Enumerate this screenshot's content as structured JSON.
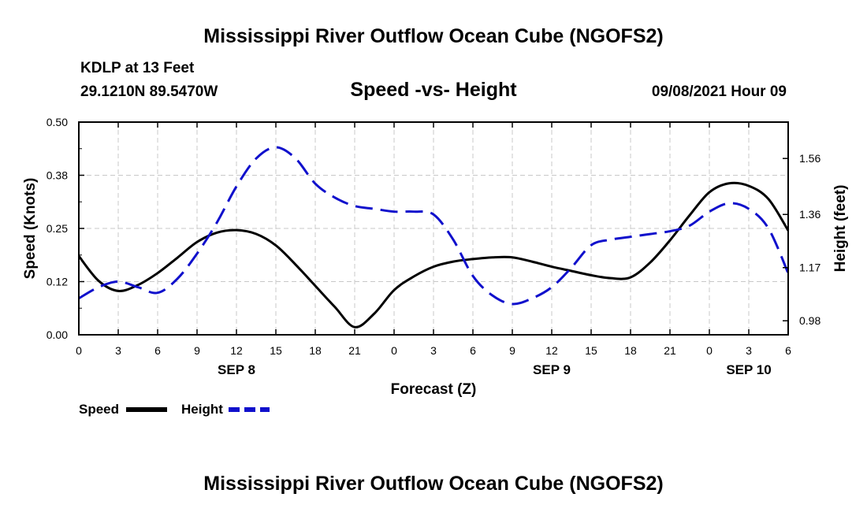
{
  "header": {
    "title": "Mississippi River Outflow Ocean Cube (NGOFS2)",
    "station": "KDLP at 13 Feet",
    "coords": "29.1210N  89.5470W",
    "subtitle": "Speed -vs- Height",
    "datetime": "09/08/2021 Hour 09"
  },
  "footer": {
    "title": "Mississippi River Outflow Ocean Cube (NGOFS2)"
  },
  "chart_data": {
    "type": "line",
    "xlabel": "Forecast (Z)",
    "ylabel_left": "Speed (Knots)",
    "ylabel_right": "Height (feet)",
    "xlim": [
      0,
      54
    ],
    "ylim_left": [
      0,
      0.5
    ],
    "ylim_right": [
      0.93,
      1.69
    ],
    "yticks_left": [
      "0.00",
      "0.12",
      "0.25",
      "0.38",
      "0.50"
    ],
    "yticks_left_values": [
      0,
      0.125,
      0.25,
      0.375,
      0.5
    ],
    "yticks_right": [
      "0.98",
      "1.17",
      "1.36",
      "1.56"
    ],
    "yticks_right_values": [
      0.98,
      1.17,
      1.36,
      1.56
    ],
    "xtick_labels": [
      "0",
      "3",
      "6",
      "9",
      "12",
      "15",
      "18",
      "21",
      "0",
      "3",
      "6",
      "9",
      "12",
      "15",
      "18",
      "21",
      "0",
      "3",
      "6"
    ],
    "date_labels": [
      {
        "label": "SEP 8",
        "x": 12
      },
      {
        "label": "SEP 9",
        "x": 36
      },
      {
        "label": "SEP 10",
        "x": 51
      }
    ],
    "grid": true,
    "series": [
      {
        "name": "Speed",
        "axis": "left",
        "color": "#000000",
        "dash": "solid",
        "x": [
          0,
          1.5,
          3,
          4.5,
          6,
          7.5,
          9,
          10.5,
          12,
          13.5,
          15,
          16.5,
          18,
          19.5,
          21,
          22.5,
          24,
          25.5,
          27,
          28.5,
          30,
          31.5,
          33,
          34.5,
          36,
          37.5,
          39,
          40.5,
          42,
          43.5,
          45,
          46.5,
          48,
          49.5,
          51,
          52.5,
          54
        ],
        "values": [
          0.185,
          0.127,
          0.103,
          0.117,
          0.145,
          0.181,
          0.218,
          0.24,
          0.246,
          0.237,
          0.21,
          0.165,
          0.115,
          0.065,
          0.018,
          0.05,
          0.105,
          0.137,
          0.16,
          0.172,
          0.178,
          0.182,
          0.182,
          0.172,
          0.16,
          0.15,
          0.14,
          0.133,
          0.135,
          0.17,
          0.222,
          0.281,
          0.335,
          0.356,
          0.35,
          0.319,
          0.245
        ]
      },
      {
        "name": "Height",
        "axis": "right",
        "color": "#1010cc",
        "dash": "dashed",
        "x": [
          0,
          1.5,
          3,
          4.5,
          6,
          7.5,
          9,
          10.5,
          12,
          13.5,
          15,
          16.5,
          18,
          19.5,
          21,
          22.5,
          24,
          25.5,
          27,
          28.5,
          30,
          31.5,
          33,
          34.5,
          36,
          37.5,
          39,
          40.5,
          42,
          43.5,
          45,
          46.5,
          48,
          49.5,
          51,
          52.5,
          54
        ],
        "values": [
          1.06,
          1.1,
          1.12,
          1.1,
          1.08,
          1.13,
          1.22,
          1.33,
          1.46,
          1.56,
          1.6,
          1.56,
          1.47,
          1.42,
          1.39,
          1.38,
          1.37,
          1.37,
          1.36,
          1.27,
          1.14,
          1.07,
          1.04,
          1.06,
          1.1,
          1.17,
          1.25,
          1.27,
          1.28,
          1.29,
          1.3,
          1.32,
          1.37,
          1.4,
          1.38,
          1.31,
          1.15
        ]
      }
    ]
  }
}
